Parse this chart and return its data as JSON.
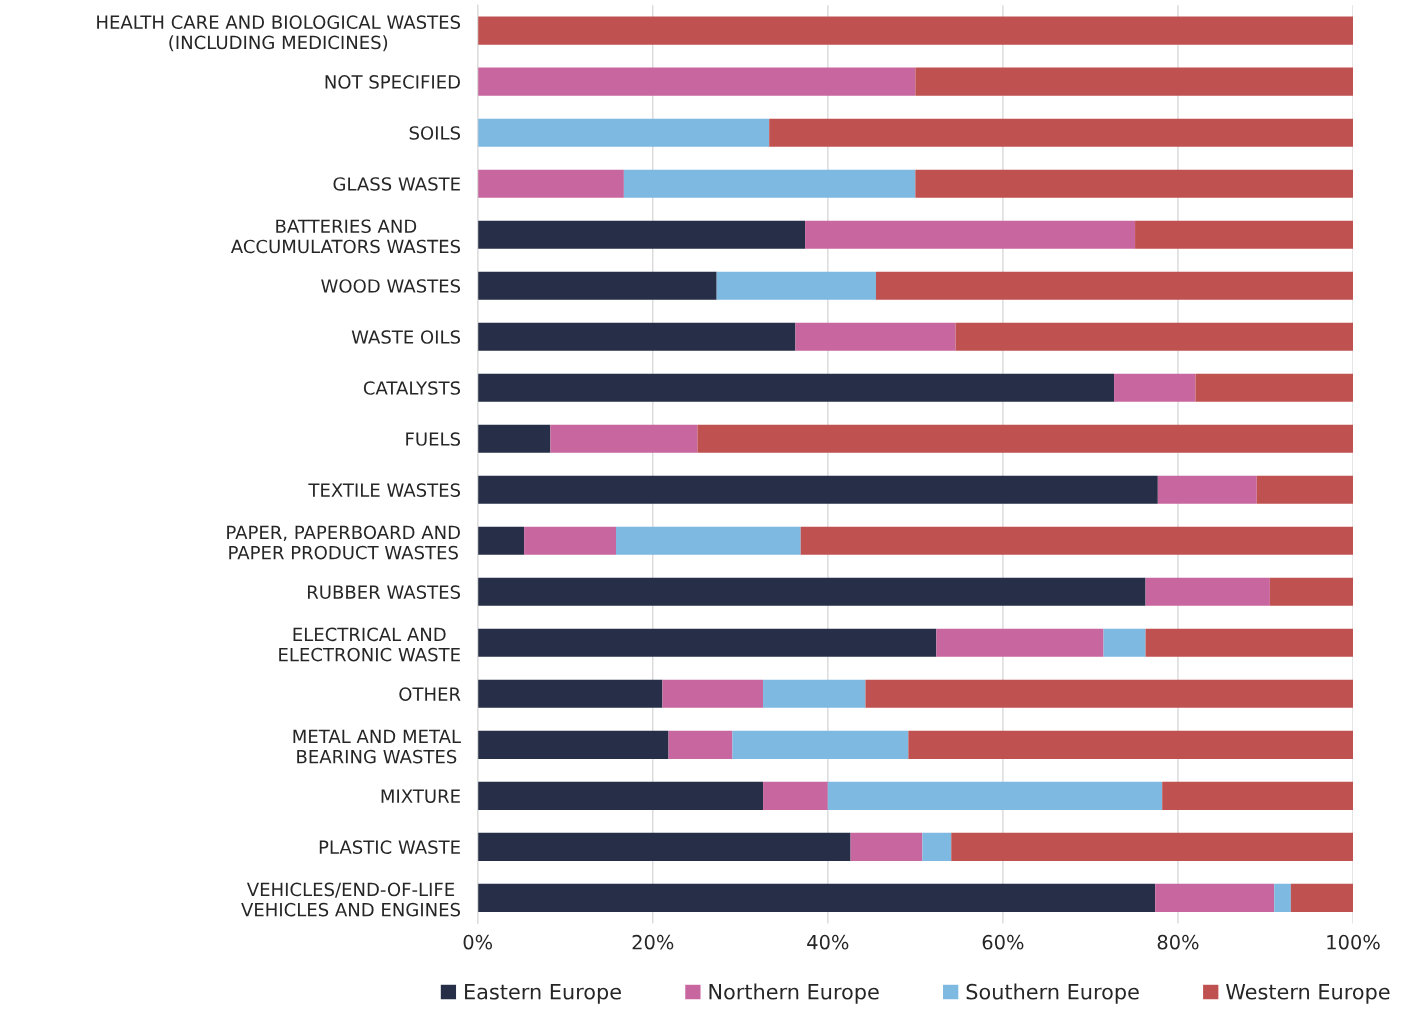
{
  "chart_data": {
    "type": "bar",
    "orientation": "horizontal",
    "stacked": true,
    "categories": [
      "HEALTH CARE AND BIOLOGICAL WASTES\n(INCLUDING MEDICINES)",
      "NOT SPECIFIED",
      "SOILS",
      "GLASS WASTE",
      "BATTERIES AND\nACCUMULATORS WASTES",
      "WOOD WASTES",
      "WASTE OILS",
      "CATALYSTS",
      "FUELS",
      "TEXTILE WASTES",
      "PAPER, PAPERBOARD AND\nPAPER PRODUCT WASTES",
      "RUBBER WASTES",
      "ELECTRICAL AND\nELECTRONIC WASTE",
      "OTHER",
      "METAL AND METAL\nBEARING WASTES",
      "MIXTURE",
      "PLASTIC WASTE",
      "VEHICLES/END-OF-LIFE\nVEHICLES AND ENGINES"
    ],
    "series": [
      {
        "name": "Eastern Europe",
        "color": "#262f47",
        "values": [
          0,
          0,
          0,
          0,
          37.4,
          27.3,
          36.3,
          72.7,
          8.3,
          77.7,
          5.3,
          76.3,
          52.4,
          21.1,
          21.8,
          32.6,
          42.6,
          77.4
        ]
      },
      {
        "name": "Northern Europe",
        "color": "#c8669f",
        "values": [
          0,
          50,
          0,
          16.7,
          37.7,
          0,
          18.3,
          9.3,
          16.8,
          11.3,
          10.5,
          14.2,
          19.1,
          11.5,
          7.3,
          7.4,
          8.2,
          13.6
        ]
      },
      {
        "name": "Southern Europe",
        "color": "#7db9e0",
        "values": [
          0,
          0,
          33.3,
          33.3,
          0,
          18.2,
          0,
          0,
          0,
          0,
          21.1,
          0,
          4.8,
          11.7,
          20.1,
          38.2,
          3.3,
          1.9
        ]
      },
      {
        "name": "Western Europe",
        "color": "#c05151",
        "values": [
          100,
          50,
          66.7,
          50,
          25,
          54.5,
          45.4,
          18,
          74.9,
          11,
          63.1,
          9.5,
          23.7,
          55.7,
          50.8,
          21.8,
          45.9,
          7.1
        ]
      }
    ],
    "xlim": [
      0,
      100
    ],
    "xticks": [
      {
        "value": 0,
        "label": "0%"
      },
      {
        "value": 20,
        "label": "20%"
      },
      {
        "value": 40,
        "label": "40%"
      },
      {
        "value": 60,
        "label": "60%"
      },
      {
        "value": 80,
        "label": "80%"
      },
      {
        "value": 100,
        "label": "100%"
      }
    ],
    "grid": "x",
    "legend": "bottom"
  }
}
